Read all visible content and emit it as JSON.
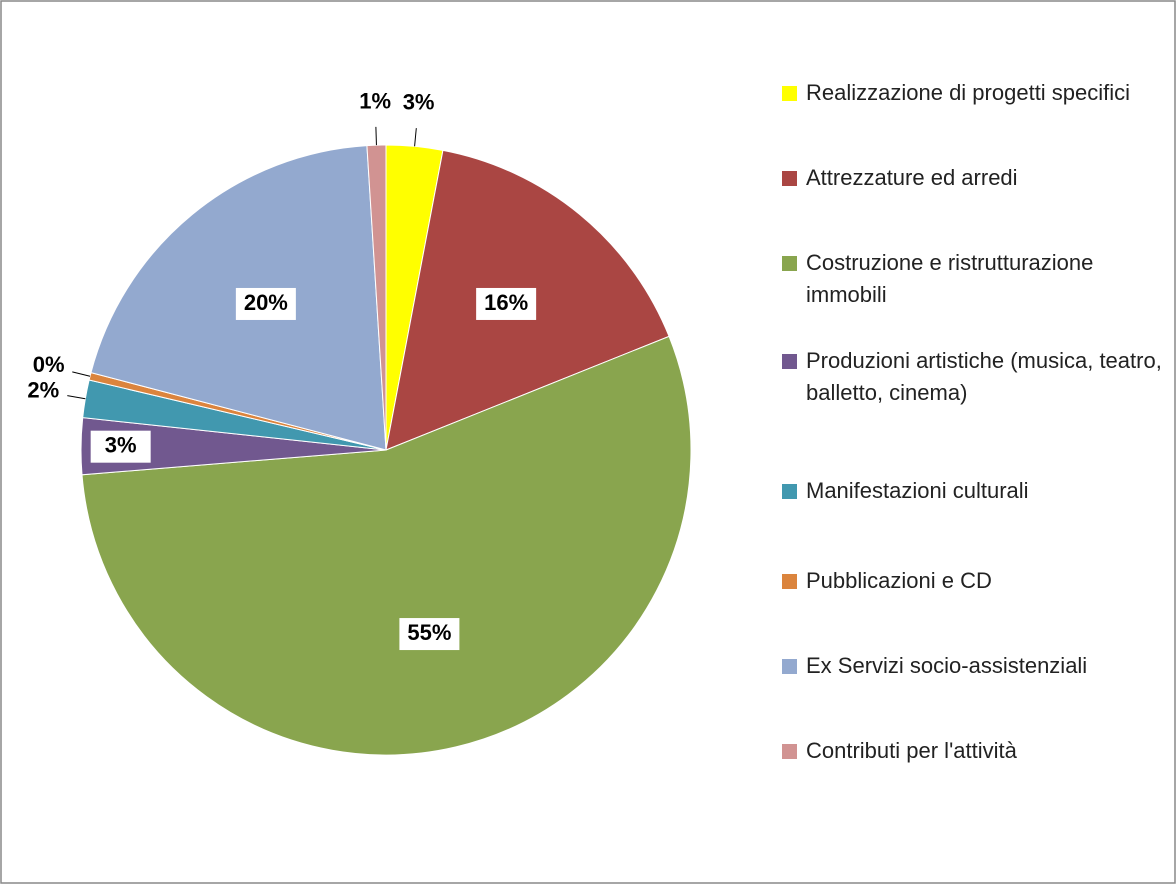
{
  "chart_data": {
    "type": "pie",
    "categories": [
      "Realizzazione di progetti specifici",
      "Attrezzature ed arredi",
      "Costruzione e ristrutturazione immobili",
      "Produzioni artistiche (musica, teatro, balletto, cinema)",
      "Manifestazioni culturali",
      "Pubblicazioni e CD",
      "Ex Servizi socio-assistenziali",
      "Contributi per l'attività"
    ],
    "values": [
      3,
      16,
      55,
      3,
      2,
      0.4,
      20,
      1
    ],
    "value_labels": [
      "3%",
      "16%",
      "55%",
      "3%",
      "2%",
      "0%",
      "20%",
      "1%"
    ],
    "colors": [
      "#ffff00",
      "#aa4643",
      "#89a54e",
      "#71588f",
      "#4198af",
      "#db843d",
      "#93a9cf",
      "#d19392"
    ],
    "legend": "right"
  }
}
